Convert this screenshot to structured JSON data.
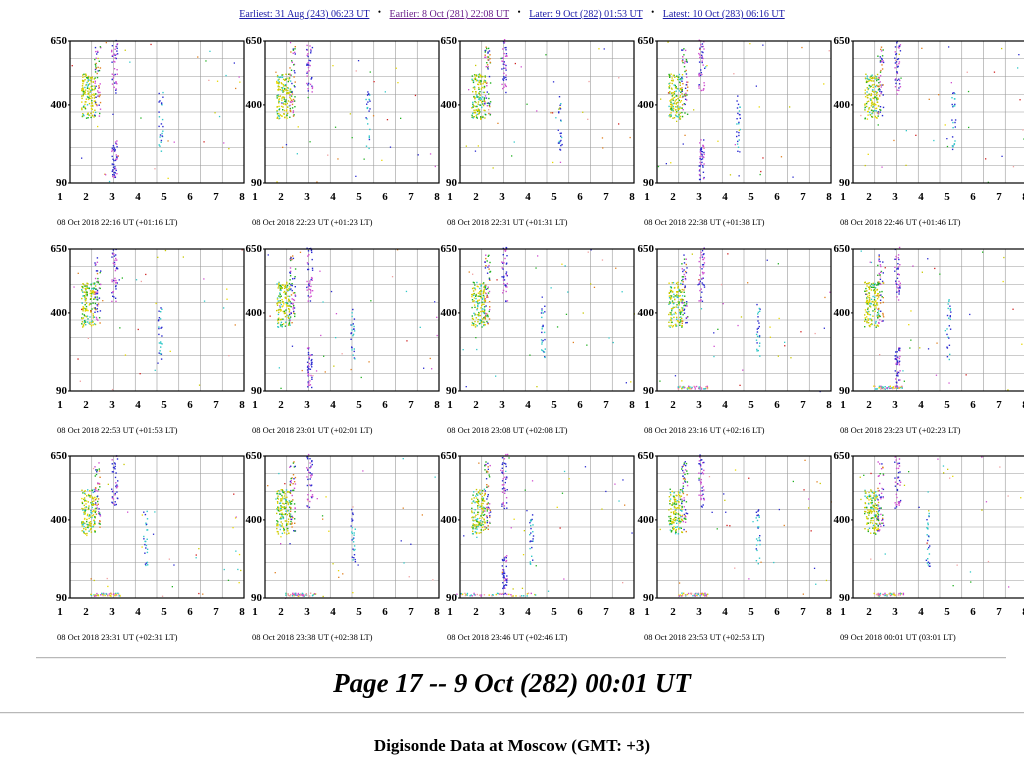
{
  "nav": {
    "earliest": "Earliest: 31 Aug (243) 06:23 UT",
    "earlier": "Earlier: 8 Oct (281) 22:08 UT",
    "later": "Later: 9 Oct (282) 01:53 UT",
    "latest": "Latest: 10 Oct (283) 06:16 UT",
    "separator": "•"
  },
  "axes": {
    "y_ticks": [
      "650",
      "400",
      "90"
    ],
    "x_ticks": [
      "1",
      "2",
      "3",
      "4",
      "5",
      "6",
      "7",
      "8"
    ]
  },
  "panels": [
    {
      "caption": "08 Oct 2018 22:16 UT (+01:16 LT)"
    },
    {
      "caption": "08 Oct 2018 22:23 UT (+01:23 LT)"
    },
    {
      "caption": "08 Oct 2018 22:31 UT (+01:31 LT)"
    },
    {
      "caption": "08 Oct 2018 22:38 UT (+01:38 LT)"
    },
    {
      "caption": "08 Oct 2018 22:46 UT (+01:46 LT)"
    },
    {
      "caption": "08 Oct 2018 22:53 UT (+01:53 LT)"
    },
    {
      "caption": "08 Oct 2018 23:01 UT (+02:01 LT)"
    },
    {
      "caption": "08 Oct 2018 23:08 UT (+02:08 LT)"
    },
    {
      "caption": "08 Oct 2018 23:16 UT (+02:16 LT)"
    },
    {
      "caption": "08 Oct 2018 23:23 UT (+02:23 LT)"
    },
    {
      "caption": "08 Oct 2018 23:31 UT (+02:31 LT)"
    },
    {
      "caption": "08 Oct 2018 23:38 UT (+02:38 LT)"
    },
    {
      "caption": "08 Oct 2018 23:46 UT (+02:46 LT)"
    },
    {
      "caption": "08 Oct 2018 23:53 UT (+02:53 LT)"
    },
    {
      "caption": "09 Oct 2018 00:01 UT (03:01 LT)"
    }
  ],
  "page_title": "Page 17 -- 9 Oct (282) 00:01 UT",
  "station_title": "Digisonde Data at Moscow (GMT: +3)",
  "colors": {
    "link": "#1a1aa6",
    "visited": "#6b1f8a",
    "grid": "#9a9a9a",
    "trace_palette": [
      "#e8d800",
      "#c8c800",
      "#2a2ad0",
      "#20b020",
      "#30c8c8",
      "#d050d0",
      "#e08020",
      "#d02020",
      "#f0a0a0"
    ]
  }
}
